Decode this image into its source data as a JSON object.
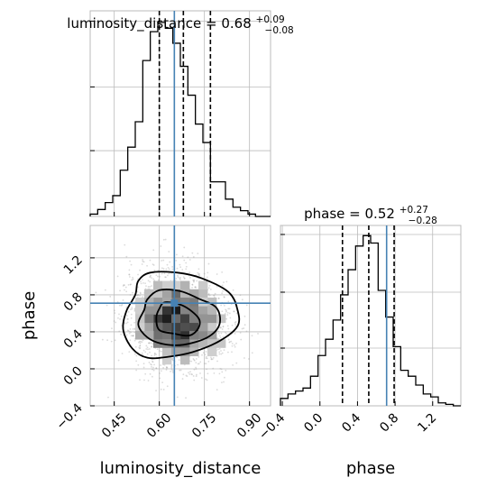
{
  "chart_data": [
    {
      "type": "histogram",
      "parameter": "luminosity_distance",
      "title": {
        "name": "luminosity_distance",
        "median": "0.68",
        "plus": "+0.09",
        "minus": "−0.08"
      },
      "xlim": [
        0.37,
        0.97
      ],
      "quantiles": [
        0.6,
        0.68,
        0.77
      ],
      "truth": 0.65,
      "bin_edges": [
        0.37,
        0.395,
        0.42,
        0.445,
        0.47,
        0.495,
        0.52,
        0.545,
        0.57,
        0.595,
        0.62,
        0.645,
        0.67,
        0.695,
        0.72,
        0.745,
        0.77,
        0.795,
        0.82,
        0.845,
        0.87,
        0.895,
        0.92,
        0.945,
        0.97
      ],
      "counts": [
        2,
        6,
        12,
        18,
        40,
        60,
        82,
        135,
        160,
        168,
        163,
        150,
        130,
        105,
        80,
        64,
        30,
        30,
        15,
        8,
        5,
        2,
        0,
        0
      ],
      "grid": true
    },
    {
      "type": "histogram",
      "parameter": "phase",
      "title": {
        "name": "phase",
        "median": "0.52",
        "plus": "+0.27",
        "minus": "−0.28"
      },
      "xlim": [
        -0.42,
        1.5
      ],
      "quantiles": [
        0.24,
        0.52,
        0.79
      ],
      "truth": 0.71,
      "bin_edges": [
        -0.42,
        -0.34,
        -0.26,
        -0.18,
        -0.1,
        -0.02,
        0.06,
        0.14,
        0.22,
        0.3,
        0.38,
        0.46,
        0.54,
        0.62,
        0.7,
        0.78,
        0.86,
        0.94,
        1.02,
        1.1,
        1.18,
        1.26,
        1.34,
        1.42,
        1.5
      ],
      "counts": [
        5,
        8,
        10,
        12,
        20,
        34,
        45,
        58,
        75,
        92,
        108,
        115,
        110,
        78,
        60,
        40,
        24,
        20,
        14,
        8,
        6,
        2,
        1,
        0
      ],
      "grid": true
    },
    {
      "type": "heatmap",
      "x_parameter": "luminosity_distance",
      "y_parameter": "phase",
      "xlim": [
        0.37,
        0.97
      ],
      "ylim": [
        -0.4,
        1.55
      ],
      "truth": [
        0.65,
        0.71
      ],
      "xlabel": "luminosity_distance",
      "ylabel": "phase",
      "x_ticks": [
        0.45,
        0.6,
        0.75,
        0.9
      ],
      "x_tick_labels": [
        "0.45",
        "0.60",
        "0.75",
        "0.90"
      ],
      "y_ticks": [
        -0.4,
        0.0,
        0.4,
        0.8,
        1.2
      ],
      "y_tick_labels": [
        "−0.4",
        "0.0",
        "0.4",
        "0.8",
        "1.2"
      ],
      "density_center": [
        0.66,
        0.52
      ],
      "contours": [
        [
          [
            0.62,
            0.72
          ],
          [
            0.68,
            0.68
          ],
          [
            0.73,
            0.55
          ],
          [
            0.73,
            0.44
          ],
          [
            0.7,
            0.36
          ],
          [
            0.65,
            0.38
          ],
          [
            0.6,
            0.42
          ],
          [
            0.59,
            0.55
          ],
          [
            0.6,
            0.65
          ]
        ],
        [
          [
            0.6,
            0.85
          ],
          [
            0.67,
            0.84
          ],
          [
            0.73,
            0.76
          ],
          [
            0.79,
            0.66
          ],
          [
            0.8,
            0.48
          ],
          [
            0.76,
            0.34
          ],
          [
            0.68,
            0.26
          ],
          [
            0.61,
            0.27
          ],
          [
            0.56,
            0.34
          ],
          [
            0.53,
            0.48
          ],
          [
            0.55,
            0.64
          ],
          [
            0.56,
            0.75
          ]
        ],
        [
          [
            0.57,
            1.04
          ],
          [
            0.66,
            1.04
          ],
          [
            0.74,
            0.98
          ],
          [
            0.83,
            0.83
          ],
          [
            0.86,
            0.64
          ],
          [
            0.86,
            0.46
          ],
          [
            0.8,
            0.3
          ],
          [
            0.71,
            0.18
          ],
          [
            0.63,
            0.13
          ],
          [
            0.56,
            0.12
          ],
          [
            0.51,
            0.22
          ],
          [
            0.48,
            0.42
          ],
          [
            0.49,
            0.62
          ],
          [
            0.52,
            0.8
          ],
          [
            0.53,
            0.95
          ]
        ]
      ]
    },
    {
      "type": "histogram_axes",
      "xlabel": "phase",
      "x_ticks": [
        -0.4,
        0.0,
        0.4,
        0.8,
        1.2
      ],
      "x_tick_labels": [
        "−0.4",
        "0.0",
        "0.4",
        "0.8",
        "1.2"
      ]
    }
  ],
  "colors": {
    "hist": "#000000",
    "truth": "#4682b4",
    "grid": "#bbbbbb",
    "frame": "#bbbbbb"
  }
}
